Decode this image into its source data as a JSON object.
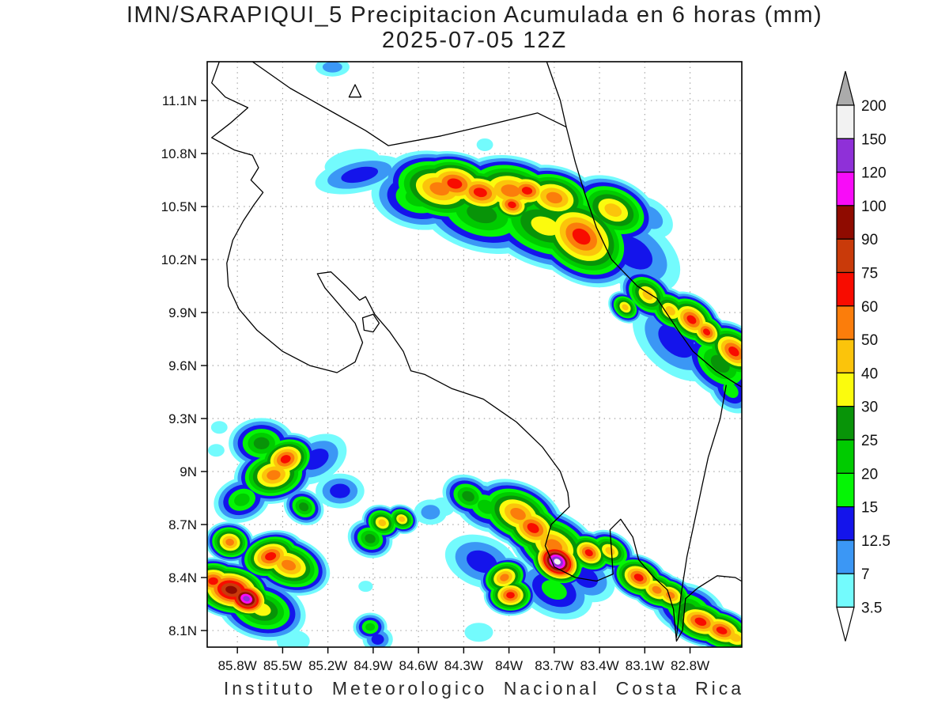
{
  "title": {
    "line1": "IMN/SARAPIQUI_5 Precipitacion Acumulada en 6 horas (mm)",
    "line2": "2025-07-05 12Z"
  },
  "footer": "Instituto Meteorologico Nacional Costa Rica",
  "axes": {
    "lat_ticks": [
      {
        "label": "11.1N",
        "lat": 11.1
      },
      {
        "label": "10.8N",
        "lat": 10.8
      },
      {
        "label": "10.5N",
        "lat": 10.5
      },
      {
        "label": "10.2N",
        "lat": 10.2
      },
      {
        "label": "9.9N",
        "lat": 9.9
      },
      {
        "label": "9.6N",
        "lat": 9.6
      },
      {
        "label": "9.3N",
        "lat": 9.3
      },
      {
        "label": "9N",
        "lat": 9.0
      },
      {
        "label": "8.7N",
        "lat": 8.7
      },
      {
        "label": "8.4N",
        "lat": 8.4
      },
      {
        "label": "8.1N",
        "lat": 8.1
      }
    ],
    "lon_ticks": [
      {
        "label": "85.8W",
        "lon": -85.8
      },
      {
        "label": "85.5W",
        "lon": -85.5
      },
      {
        "label": "85.2W",
        "lon": -85.2
      },
      {
        "label": "84.9W",
        "lon": -84.9
      },
      {
        "label": "84.6W",
        "lon": -84.6
      },
      {
        "label": "84.3W",
        "lon": -84.3
      },
      {
        "label": "84W",
        "lon": -84.0
      },
      {
        "label": "83.7W",
        "lon": -83.7
      },
      {
        "label": "83.4W",
        "lon": -83.4
      },
      {
        "label": "83.1W",
        "lon": -83.1
      },
      {
        "label": "82.8W",
        "lon": -82.8
      }
    ]
  },
  "chart_data": {
    "type": "heatmap",
    "title": "IMN/SARAPIQUI_5 Precipitacion Acumulada en 6 horas (mm) 2025-07-05 12Z",
    "units": "mm",
    "lon_range": [
      -86.0,
      -82.457
    ],
    "lat_range": [
      8.006,
      11.32
    ],
    "levels": [
      3.5,
      7,
      12.5,
      15,
      20,
      25,
      30,
      40,
      50,
      60,
      75,
      90,
      100,
      120,
      150,
      200
    ],
    "palette": [
      "#73fbfd",
      "#3b97f5",
      "#1414eb",
      "#05f505",
      "#00cb00",
      "#089408",
      "#fbfb0d",
      "#fbc40b",
      "#fb7d0b",
      "#f80c00",
      "#c93a0a",
      "#8f0b00",
      "#f80cf8",
      "#8f30d8",
      "#f2f2f2"
    ],
    "over_color": "#ababab",
    "under_color": "#ffffff",
    "cells": [
      [
        -84.46,
        10.6,
        50,
        46,
        15,
        1.6
      ],
      [
        -84.36,
        10.63,
        60,
        40,
        12,
        1.5
      ],
      [
        -84.19,
        10.58,
        60,
        36,
        12,
        1.5
      ],
      [
        -83.99,
        10.59,
        50,
        44,
        10,
        1.6
      ],
      [
        -83.88,
        10.59,
        60,
        30,
        10,
        1.4
      ],
      [
        -83.98,
        10.51,
        60,
        26,
        15,
        1.3
      ],
      [
        -83.7,
        10.55,
        50,
        40,
        15,
        1.5
      ],
      [
        -83.52,
        10.33,
        60,
        56,
        35,
        1.4
      ],
      [
        -83.31,
        10.48,
        40,
        40,
        25,
        1.5
      ],
      [
        -83.76,
        10.39,
        30,
        52,
        20,
        1.7
      ],
      [
        -84.18,
        10.46,
        25,
        48,
        15,
        1.7
      ],
      [
        -84.6,
        10.55,
        20,
        40,
        10,
        1.5
      ],
      [
        -83.18,
        10.24,
        12.5,
        42,
        35,
        1.6
      ],
      [
        -83.08,
        10.0,
        40,
        28,
        40,
        1.4
      ],
      [
        -82.93,
        9.91,
        40,
        26,
        40,
        1.4
      ],
      [
        -82.79,
        9.86,
        60,
        30,
        40,
        1.4
      ],
      [
        -82.69,
        9.79,
        60,
        24,
        40,
        1.3
      ],
      [
        -82.51,
        9.68,
        60,
        32,
        40,
        1.5
      ],
      [
        -82.89,
        9.74,
        12.5,
        40,
        40,
        1.6
      ],
      [
        -82.6,
        9.61,
        25,
        38,
        40,
        1.5
      ],
      [
        -82.53,
        9.46,
        15,
        24,
        45,
        1.4
      ],
      [
        -84.99,
        10.68,
        12.5,
        22,
        -12,
        2.6
      ],
      [
        -85.04,
        10.75,
        3.5,
        16,
        -12,
        2.2
      ],
      [
        -84.16,
        10.85,
        3.5,
        8,
        0,
        1.3
      ],
      [
        -85.17,
        11.29,
        7,
        12,
        0,
        1.8
      ],
      [
        -83.07,
        10.44,
        7,
        22,
        35,
        1.5
      ],
      [
        -82.94,
        10.12,
        3.5,
        10,
        0,
        1.3
      ],
      [
        -83.23,
        9.93,
        40,
        18,
        40,
        1.3
      ],
      [
        -85.48,
        9.07,
        60,
        32,
        -20,
        1.3
      ],
      [
        -85.56,
        8.98,
        50,
        36,
        -10,
        1.4
      ],
      [
        -85.64,
        9.16,
        25,
        32,
        0,
        1.3
      ],
      [
        -85.77,
        8.84,
        20,
        28,
        -20,
        1.3
      ],
      [
        -85.36,
        8.8,
        25,
        22,
        30,
        1.2
      ],
      [
        -85.58,
        8.52,
        60,
        32,
        -15,
        1.4
      ],
      [
        -85.46,
        8.47,
        50,
        36,
        20,
        1.5
      ],
      [
        -85.85,
        8.6,
        50,
        26,
        10,
        1.2
      ],
      [
        -85.84,
        8.33,
        90,
        36,
        10,
        1.5
      ],
      [
        -85.74,
        8.28,
        120,
        28,
        20,
        1.3
      ],
      [
        -85.96,
        8.38,
        60,
        30,
        0,
        1.3
      ],
      [
        -85.64,
        8.22,
        30,
        38,
        15,
        1.5
      ],
      [
        -84.92,
        8.62,
        25,
        24,
        20,
        1.2
      ],
      [
        -84.84,
        8.71,
        40,
        22,
        25,
        1.2
      ],
      [
        -84.71,
        8.73,
        40,
        18,
        25,
        1.2
      ],
      [
        -85.12,
        8.89,
        12.5,
        22,
        0,
        1.4
      ],
      [
        -85.28,
        9.07,
        12.5,
        28,
        -30,
        1.5
      ],
      [
        -85.92,
        9.25,
        3.5,
        8,
        0,
        1.3
      ],
      [
        -85.94,
        9.12,
        3.5,
        8,
        0,
        1.3
      ],
      [
        -84.27,
        8.86,
        25,
        26,
        25,
        1.3
      ],
      [
        -84.15,
        8.8,
        20,
        30,
        25,
        1.4
      ],
      [
        -83.84,
        8.68,
        60,
        36,
        30,
        1.4
      ],
      [
        -83.94,
        8.76,
        50,
        40,
        25,
        1.5
      ],
      [
        -83.68,
        8.49,
        150,
        30,
        30,
        1.3
      ],
      [
        -83.7,
        8.58,
        50,
        42,
        30,
        1.5
      ],
      [
        -83.47,
        8.54,
        60,
        26,
        30,
        1.3
      ],
      [
        -83.33,
        8.55,
        40,
        24,
        30,
        1.4
      ],
      [
        -84.03,
        8.4,
        50,
        26,
        -20,
        1.3
      ],
      [
        -83.99,
        8.3,
        60,
        26,
        0,
        1.3
      ],
      [
        -84.18,
        8.49,
        12.5,
        32,
        20,
        1.5
      ],
      [
        -83.7,
        8.33,
        15,
        34,
        25,
        1.5
      ],
      [
        -83.49,
        8.4,
        12.5,
        28,
        30,
        1.4
      ],
      [
        -84.52,
        8.77,
        7,
        16,
        0,
        1.3
      ],
      [
        -84.44,
        8.8,
        3.5,
        12,
        0,
        1.3
      ],
      [
        -83.14,
        8.4,
        60,
        28,
        25,
        1.4
      ],
      [
        -83.02,
        8.33,
        50,
        26,
        25,
        1.4
      ],
      [
        -82.93,
        8.3,
        50,
        24,
        25,
        1.4
      ],
      [
        -82.73,
        8.15,
        60,
        30,
        20,
        1.6
      ],
      [
        -82.59,
        8.1,
        60,
        28,
        20,
        1.6
      ],
      [
        -82.81,
        8.22,
        25,
        32,
        20,
        1.5
      ],
      [
        -82.5,
        8.06,
        40,
        26,
        20,
        1.5
      ],
      [
        -84.92,
        8.12,
        20,
        18,
        0,
        1.2
      ],
      [
        -84.87,
        8.05,
        12.5,
        16,
        0,
        1.2
      ],
      [
        -85.43,
        8.04,
        3.5,
        14,
        0,
        1.5
      ],
      [
        -84.2,
        8.09,
        3.5,
        12,
        0,
        1.5
      ],
      [
        -84.95,
        8.35,
        3.5,
        7,
        0,
        1.3
      ]
    ],
    "coastlines": [
      {
        "name": "pacific-coast",
        "closed": false,
        "pts": [
          [
            -85.92,
            11.32
          ],
          [
            -85.97,
            11.2
          ],
          [
            -85.88,
            11.12
          ],
          [
            -85.73,
            11.06
          ],
          [
            -85.85,
            10.97
          ],
          [
            -85.97,
            10.89
          ],
          [
            -85.82,
            10.82
          ],
          [
            -85.7,
            10.79
          ],
          [
            -85.66,
            10.72
          ],
          [
            -85.71,
            10.65
          ],
          [
            -85.63,
            10.58
          ],
          [
            -85.69,
            10.51
          ],
          [
            -85.76,
            10.42
          ],
          [
            -85.83,
            10.31
          ],
          [
            -85.87,
            10.18
          ],
          [
            -85.86,
            10.05
          ],
          [
            -85.79,
            9.92
          ],
          [
            -85.67,
            9.8
          ],
          [
            -85.5,
            9.68
          ],
          [
            -85.32,
            9.6
          ],
          [
            -85.14,
            9.56
          ],
          [
            -85.02,
            9.62
          ],
          [
            -84.97,
            9.73
          ],
          [
            -85.02,
            9.84
          ],
          [
            -85.12,
            9.94
          ],
          [
            -85.22,
            10.04
          ],
          [
            -85.27,
            10.12
          ],
          [
            -85.18,
            10.13
          ],
          [
            -85.08,
            10.05
          ],
          [
            -84.99,
            9.97
          ],
          [
            -84.95,
            9.99
          ],
          [
            -84.89,
            9.89
          ],
          [
            -84.79,
            9.79
          ],
          [
            -84.7,
            9.68
          ],
          [
            -84.65,
            9.57
          ],
          [
            -84.56,
            9.55
          ],
          [
            -84.38,
            9.47
          ],
          [
            -84.17,
            9.41
          ],
          [
            -83.95,
            9.28
          ],
          [
            -83.78,
            9.14
          ],
          [
            -83.66,
            9.0
          ],
          [
            -83.61,
            8.88
          ],
          [
            -83.6,
            8.8
          ],
          [
            -83.72,
            8.7
          ],
          [
            -83.76,
            8.58
          ],
          [
            -83.7,
            8.46
          ],
          [
            -83.56,
            8.4
          ],
          [
            -83.42,
            8.38
          ],
          [
            -83.31,
            8.42
          ],
          [
            -83.32,
            8.55
          ],
          [
            -83.33,
            8.67
          ],
          [
            -83.26,
            8.73
          ],
          [
            -83.18,
            8.63
          ],
          [
            -83.14,
            8.5
          ],
          [
            -83.05,
            8.41
          ],
          [
            -82.95,
            8.33
          ],
          [
            -82.91,
            8.22
          ],
          [
            -82.89,
            8.04
          ],
          [
            -82.85,
            8.1
          ],
          [
            -82.83,
            8.28
          ],
          [
            -82.75,
            8.34
          ],
          [
            -82.62,
            8.41
          ],
          [
            -82.5,
            8.4
          ],
          [
            -82.46,
            8.38
          ]
        ]
      },
      {
        "name": "lake-nicaragua-shore",
        "closed": false,
        "pts": [
          [
            -85.7,
            11.32
          ],
          [
            -85.45,
            11.17
          ],
          [
            -85.18,
            11.04
          ],
          [
            -84.95,
            10.93
          ],
          [
            -84.8,
            10.845
          ],
          [
            -84.45,
            10.9
          ],
          [
            -84.1,
            10.97
          ],
          [
            -83.81,
            11.03
          ],
          [
            -83.62,
            10.95
          ]
        ]
      },
      {
        "name": "caribbean-coast",
        "closed": false,
        "pts": [
          [
            -83.75,
            11.32
          ],
          [
            -83.66,
            11.1
          ],
          [
            -83.62,
            10.95
          ],
          [
            -83.56,
            10.75
          ],
          [
            -83.5,
            10.58
          ],
          [
            -83.42,
            10.38
          ],
          [
            -83.32,
            10.2
          ],
          [
            -83.15,
            10.05
          ],
          [
            -83.02,
            9.98
          ],
          [
            -82.88,
            9.8
          ],
          [
            -82.78,
            9.68
          ],
          [
            -82.63,
            9.57
          ],
          [
            -82.5,
            9.5
          ],
          [
            -82.46,
            9.48
          ]
        ]
      },
      {
        "name": "panama-border",
        "closed": false,
        "pts": [
          [
            -82.56,
            9.49
          ],
          [
            -82.6,
            9.3
          ],
          [
            -82.68,
            9.08
          ],
          [
            -82.72,
            8.92
          ],
          [
            -82.77,
            8.72
          ],
          [
            -82.82,
            8.52
          ],
          [
            -82.86,
            8.3
          ],
          [
            -82.89,
            8.06
          ]
        ]
      },
      {
        "name": "ometepe-island",
        "closed": true,
        "pts": [
          [
            -85.02,
            11.19
          ],
          [
            -84.98,
            11.12
          ],
          [
            -85.06,
            11.12
          ]
        ]
      },
      {
        "name": "chira-island",
        "closed": true,
        "pts": [
          [
            -84.97,
            9.87
          ],
          [
            -84.9,
            9.89
          ],
          [
            -84.86,
            9.84
          ],
          [
            -84.9,
            9.79
          ],
          [
            -84.96,
            9.8
          ]
        ]
      }
    ]
  },
  "colorbar": {
    "boundary_labels": [
      "200",
      "150",
      "120",
      "100",
      "90",
      "75",
      "60",
      "50",
      "40",
      "30",
      "25",
      "20",
      "15",
      "12.5",
      "7",
      "3.5"
    ]
  }
}
